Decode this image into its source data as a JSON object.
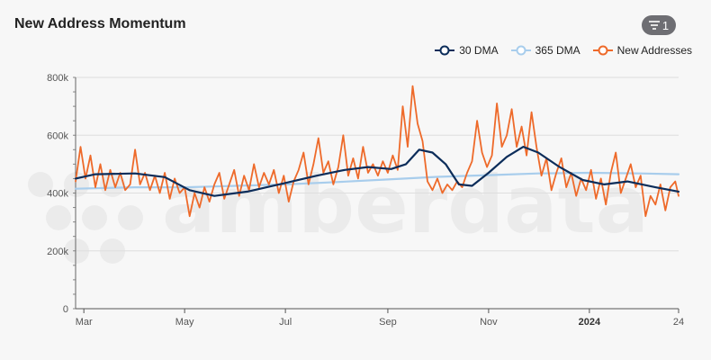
{
  "header": {
    "title": "New Address Momentum",
    "filter_count": "1"
  },
  "watermark": {
    "text": "amberdata"
  },
  "legend": [
    {
      "label": "30 DMA",
      "color": "#0c2d5a"
    },
    {
      "label": "365 DMA",
      "color": "#a8cdec"
    },
    {
      "label": "New Addresses",
      "color": "#ee6a2a"
    }
  ],
  "chart_data": {
    "type": "line",
    "title": "New Address Momentum",
    "xlabel": "",
    "ylabel": "",
    "x_range": [
      "2023-02-24",
      "2024-02-24"
    ],
    "ylim": [
      0,
      800000
    ],
    "y_ticks": [
      {
        "value": 0,
        "label": "0"
      },
      {
        "value": 200000,
        "label": "200k"
      },
      {
        "value": 400000,
        "label": "400k"
      },
      {
        "value": 600000,
        "label": "600k"
      },
      {
        "value": 800000,
        "label": "800k"
      }
    ],
    "x_ticks": [
      {
        "date": "2023-03-01",
        "label": "Mar",
        "bold": false
      },
      {
        "date": "2023-05-01",
        "label": "May",
        "bold": false
      },
      {
        "date": "2023-07-01",
        "label": "Jul",
        "bold": false
      },
      {
        "date": "2023-09-01",
        "label": "Sep",
        "bold": false
      },
      {
        "date": "2023-11-01",
        "label": "Nov",
        "bold": false
      },
      {
        "date": "2024-01-01",
        "label": "2024",
        "bold": true
      },
      {
        "date": "2024-02-24",
        "label": "24",
        "bold": false
      }
    ],
    "grid": true,
    "legend_position": "top-right",
    "series": [
      {
        "name": "New Addresses",
        "color": "#ee6a2a",
        "points": [
          [
            "2023-02-24",
            440000
          ],
          [
            "2023-02-27",
            560000
          ],
          [
            "2023-03-02",
            450000
          ],
          [
            "2023-03-05",
            530000
          ],
          [
            "2023-03-08",
            420000
          ],
          [
            "2023-03-11",
            500000
          ],
          [
            "2023-03-14",
            410000
          ],
          [
            "2023-03-17",
            480000
          ],
          [
            "2023-03-20",
            420000
          ],
          [
            "2023-03-23",
            470000
          ],
          [
            "2023-03-26",
            410000
          ],
          [
            "2023-03-29",
            430000
          ],
          [
            "2023-04-01",
            550000
          ],
          [
            "2023-04-04",
            430000
          ],
          [
            "2023-04-07",
            470000
          ],
          [
            "2023-04-10",
            410000
          ],
          [
            "2023-04-13",
            460000
          ],
          [
            "2023-04-16",
            400000
          ],
          [
            "2023-04-19",
            470000
          ],
          [
            "2023-04-22",
            380000
          ],
          [
            "2023-04-25",
            450000
          ],
          [
            "2023-04-28",
            400000
          ],
          [
            "2023-05-01",
            420000
          ],
          [
            "2023-05-04",
            320000
          ],
          [
            "2023-05-07",
            400000
          ],
          [
            "2023-05-10",
            350000
          ],
          [
            "2023-05-13",
            420000
          ],
          [
            "2023-05-16",
            370000
          ],
          [
            "2023-05-19",
            430000
          ],
          [
            "2023-05-22",
            470000
          ],
          [
            "2023-05-25",
            380000
          ],
          [
            "2023-05-28",
            430000
          ],
          [
            "2023-05-31",
            480000
          ],
          [
            "2023-06-03",
            390000
          ],
          [
            "2023-06-06",
            460000
          ],
          [
            "2023-06-09",
            410000
          ],
          [
            "2023-06-12",
            500000
          ],
          [
            "2023-06-15",
            420000
          ],
          [
            "2023-06-18",
            470000
          ],
          [
            "2023-06-21",
            430000
          ],
          [
            "2023-06-24",
            480000
          ],
          [
            "2023-06-27",
            400000
          ],
          [
            "2023-06-30",
            460000
          ],
          [
            "2023-07-03",
            370000
          ],
          [
            "2023-07-06",
            440000
          ],
          [
            "2023-07-09",
            480000
          ],
          [
            "2023-07-12",
            540000
          ],
          [
            "2023-07-15",
            430000
          ],
          [
            "2023-07-18",
            500000
          ],
          [
            "2023-07-21",
            590000
          ],
          [
            "2023-07-24",
            470000
          ],
          [
            "2023-07-27",
            510000
          ],
          [
            "2023-07-30",
            430000
          ],
          [
            "2023-08-02",
            490000
          ],
          [
            "2023-08-05",
            600000
          ],
          [
            "2023-08-08",
            460000
          ],
          [
            "2023-08-11",
            520000
          ],
          [
            "2023-08-14",
            450000
          ],
          [
            "2023-08-17",
            560000
          ],
          [
            "2023-08-20",
            470000
          ],
          [
            "2023-08-23",
            500000
          ],
          [
            "2023-08-26",
            460000
          ],
          [
            "2023-08-29",
            510000
          ],
          [
            "2023-09-01",
            470000
          ],
          [
            "2023-09-04",
            530000
          ],
          [
            "2023-09-07",
            480000
          ],
          [
            "2023-09-10",
            700000
          ],
          [
            "2023-09-13",
            560000
          ],
          [
            "2023-09-16",
            770000
          ],
          [
            "2023-09-19",
            640000
          ],
          [
            "2023-09-22",
            580000
          ],
          [
            "2023-09-25",
            440000
          ],
          [
            "2023-09-28",
            410000
          ],
          [
            "2023-10-01",
            450000
          ],
          [
            "2023-10-04",
            400000
          ],
          [
            "2023-10-07",
            430000
          ],
          [
            "2023-10-10",
            410000
          ],
          [
            "2023-10-13",
            440000
          ],
          [
            "2023-10-16",
            420000
          ],
          [
            "2023-10-19",
            470000
          ],
          [
            "2023-10-22",
            510000
          ],
          [
            "2023-10-25",
            650000
          ],
          [
            "2023-10-28",
            540000
          ],
          [
            "2023-10-31",
            490000
          ],
          [
            "2023-11-03",
            530000
          ],
          [
            "2023-11-06",
            710000
          ],
          [
            "2023-11-09",
            560000
          ],
          [
            "2023-11-12",
            600000
          ],
          [
            "2023-11-15",
            690000
          ],
          [
            "2023-11-18",
            560000
          ],
          [
            "2023-11-21",
            630000
          ],
          [
            "2023-11-24",
            530000
          ],
          [
            "2023-11-27",
            680000
          ],
          [
            "2023-11-30",
            560000
          ],
          [
            "2023-12-03",
            460000
          ],
          [
            "2023-12-06",
            520000
          ],
          [
            "2023-12-09",
            410000
          ],
          [
            "2023-12-12",
            470000
          ],
          [
            "2023-12-15",
            520000
          ],
          [
            "2023-12-18",
            420000
          ],
          [
            "2023-12-21",
            470000
          ],
          [
            "2023-12-24",
            390000
          ],
          [
            "2023-12-27",
            450000
          ],
          [
            "2023-12-30",
            410000
          ],
          [
            "2024-01-02",
            480000
          ],
          [
            "2024-01-05",
            380000
          ],
          [
            "2024-01-08",
            450000
          ],
          [
            "2024-01-11",
            360000
          ],
          [
            "2024-01-14",
            470000
          ],
          [
            "2024-01-17",
            540000
          ],
          [
            "2024-01-20",
            400000
          ],
          [
            "2024-01-23",
            450000
          ],
          [
            "2024-01-26",
            500000
          ],
          [
            "2024-01-29",
            420000
          ],
          [
            "2024-02-01",
            460000
          ],
          [
            "2024-02-04",
            320000
          ],
          [
            "2024-02-07",
            390000
          ],
          [
            "2024-02-10",
            360000
          ],
          [
            "2024-02-13",
            430000
          ],
          [
            "2024-02-16",
            340000
          ],
          [
            "2024-02-19",
            420000
          ],
          [
            "2024-02-22",
            440000
          ],
          [
            "2024-02-24",
            390000
          ]
        ]
      },
      {
        "name": "30 DMA",
        "color": "#0c2d5a",
        "points": [
          [
            "2023-02-24",
            450000
          ],
          [
            "2023-03-08",
            465000
          ],
          [
            "2023-04-01",
            468000
          ],
          [
            "2023-04-19",
            455000
          ],
          [
            "2023-05-04",
            410000
          ],
          [
            "2023-05-19",
            390000
          ],
          [
            "2023-06-08",
            405000
          ],
          [
            "2023-07-01",
            435000
          ],
          [
            "2023-07-20",
            460000
          ],
          [
            "2023-08-06",
            480000
          ],
          [
            "2023-08-20",
            490000
          ],
          [
            "2023-09-03",
            483000
          ],
          [
            "2023-09-12",
            500000
          ],
          [
            "2023-09-20",
            550000
          ],
          [
            "2023-09-28",
            540000
          ],
          [
            "2023-10-06",
            500000
          ],
          [
            "2023-10-14",
            430000
          ],
          [
            "2023-10-22",
            425000
          ],
          [
            "2023-11-01",
            470000
          ],
          [
            "2023-11-12",
            525000
          ],
          [
            "2023-11-22",
            560000
          ],
          [
            "2023-12-01",
            540000
          ],
          [
            "2023-12-14",
            490000
          ],
          [
            "2023-12-28",
            445000
          ],
          [
            "2024-01-10",
            430000
          ],
          [
            "2024-01-24",
            440000
          ],
          [
            "2024-02-10",
            420000
          ],
          [
            "2024-02-24",
            405000
          ]
        ]
      },
      {
        "name": "365 DMA",
        "color": "#a8cdec",
        "points": [
          [
            "2023-02-24",
            415000
          ],
          [
            "2023-04-01",
            420000
          ],
          [
            "2023-05-01",
            420000
          ],
          [
            "2023-06-01",
            425000
          ],
          [
            "2023-07-01",
            430000
          ],
          [
            "2023-08-01",
            438000
          ],
          [
            "2023-09-01",
            447000
          ],
          [
            "2023-10-01",
            456000
          ],
          [
            "2023-11-01",
            462000
          ],
          [
            "2023-12-01",
            468000
          ],
          [
            "2024-01-01",
            470000
          ],
          [
            "2024-02-01",
            468000
          ],
          [
            "2024-02-24",
            465000
          ]
        ]
      }
    ]
  }
}
